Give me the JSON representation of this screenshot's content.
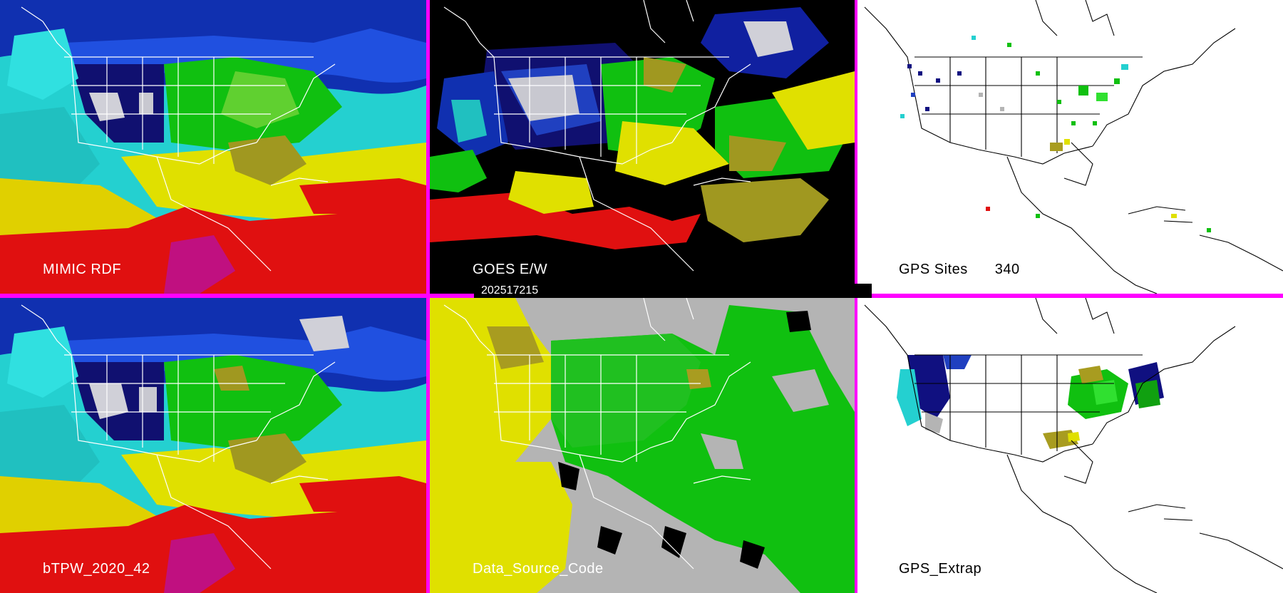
{
  "panels": {
    "mimic": {
      "label": "MIMIC RDF"
    },
    "goes": {
      "label": "GOES E/W"
    },
    "gps_sites": {
      "label": "GPS Sites",
      "count": "340"
    },
    "btpw": {
      "label": "bTPW_2020_42"
    },
    "data_source": {
      "label": "Data_Source_Code"
    },
    "gps_extrap": {
      "label": "GPS_Extrap"
    }
  },
  "timestamp": "202517215",
  "colors": {
    "border": "#ff00ff",
    "cyan": "#24d0d0",
    "green": "#10c010",
    "yellow": "#e0e000",
    "olive": "#a89c20",
    "red": "#e01010",
    "navy": "#101080",
    "blue": "#2040c0",
    "gray": "#b4b4b4",
    "white_gray": "#d8d8d8"
  }
}
